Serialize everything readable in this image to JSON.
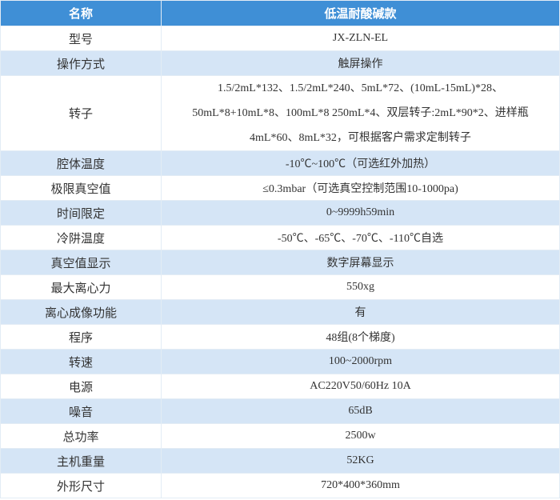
{
  "table": {
    "header": [
      "名称",
      "低温耐酸碱款"
    ],
    "rows": [
      [
        "型号",
        "JX-ZLN-EL"
      ],
      [
        "操作方式",
        "触屏操作"
      ],
      [
        "转子",
        [
          "1.5/2mL*132、1.5/2mL*240、5mL*72、(10mL-15mL)*28、",
          "50mL*8+10mL*8、100mL*8 250mL*4、双层转子:2mL*90*2、进样瓶",
          "4mL*60、8mL*32，可根据客户需求定制转子"
        ]
      ],
      [
        "腔体温度",
        "-10℃~100℃（可选红外加热）"
      ],
      [
        "极限真空值",
        "≤0.3mbar（可选真空控制范围10-1000pa)"
      ],
      [
        "时间限定",
        "0~9999h59min"
      ],
      [
        "冷阱温度",
        "-50℃、-65℃、-70℃、-110℃自选"
      ],
      [
        "真空值显示",
        "数字屏幕显示"
      ],
      [
        "最大离心力",
        "550xg"
      ],
      [
        "离心成像功能",
        "有"
      ],
      [
        "程序",
        "48组(8个梯度)"
      ],
      [
        "转速",
        "100~2000rpm"
      ],
      [
        "电源",
        "AC220V50/60Hz 10A"
      ],
      [
        "噪音",
        "65dB"
      ],
      [
        "总功率",
        "2500w"
      ],
      [
        "主机重量",
        "52KG"
      ],
      [
        "外形尺寸",
        "720*400*360mm"
      ]
    ]
  }
}
